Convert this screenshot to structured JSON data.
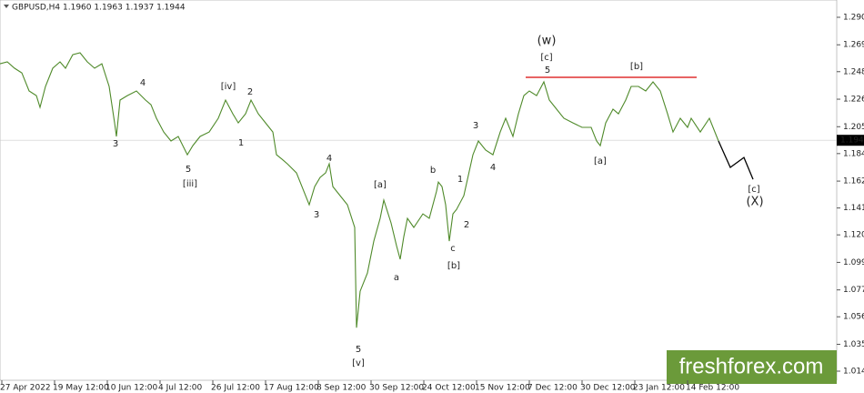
{
  "chart_data": {
    "type": "line",
    "title": "GBPUSD,H4  1.1960 1.1963 1.1937 1.1944",
    "series": [
      {
        "name": "GBPUSD",
        "color": "#4f8a2a",
        "x": [
          0,
          16,
          32,
          48,
          64,
          80,
          88,
          100,
          116,
          132,
          144,
          160,
          176,
          192,
          208,
          224,
          240,
          252,
          256,
          264,
          280,
          300,
          320,
          332,
          344,
          360,
          376,
          392,
          412,
          424,
          440,
          460,
          480,
          496,
          512,
          524,
          540,
          552,
          568,
          584,
          600,
          608,
          620,
          632,
          652,
          668,
          680,
          692,
          704,
          716,
          724,
          732,
          748,
          764,
          780,
          784,
          792,
          808,
          822,
          836,
          844,
          860,
          872,
          880,
          888,
          896,
          910,
          930,
          944,
          960,
          964,
          972,
          980,
          988,
          996,
          1004,
          1020,
          1040,
          1052,
          1068,
          1084,
          1100,
          1112,
          1128,
          1140,
          1152,
          1164,
          1180,
          1196,
          1208,
          1224,
          1240,
          1260,
          1280,
          1300,
          1312,
          1320,
          1332,
          1348,
          1360,
          1376,
          1388,
          1404,
          1420,
          1436,
          1452,
          1468,
          1480,
          1496,
          1512,
          1520,
          1540,
          1560,
          1580
        ],
        "values": [
          1.2542,
          1.2557,
          1.2507,
          1.2471,
          1.2329,
          1.2293,
          1.2201,
          1.2365,
          1.2507,
          1.2557,
          1.2507,
          1.2613,
          1.2628,
          1.2557,
          1.2507,
          1.2542,
          1.2365,
          1.208,
          1.1974,
          1.2258,
          1.2293,
          1.2329,
          1.2258,
          1.2222,
          1.2116,
          1.2009,
          1.1938,
          1.1974,
          1.1831,
          1.1902,
          1.1974,
          1.2009,
          1.2116,
          1.2258,
          1.2151,
          1.208,
          1.2151,
          1.2258,
          1.2151,
          1.208,
          1.2009,
          1.1831,
          1.1797,
          1.176,
          1.1689,
          1.1547,
          1.144,
          1.1582,
          1.1654,
          1.1689,
          1.176,
          1.1582,
          1.1511,
          1.144,
          1.1263,
          1.048,
          1.0765,
          1.0907,
          1.1156,
          1.1334,
          1.1476,
          1.1298,
          1.112,
          1.1014,
          1.1191,
          1.1334,
          1.1263,
          1.1369,
          1.1334,
          1.1547,
          1.1618,
          1.1582,
          1.144,
          1.1156,
          1.1369,
          1.1404,
          1.1511,
          1.1831,
          1.1938,
          1.1867,
          1.1831,
          1.2009,
          1.2116,
          1.1974,
          1.2151,
          1.2293,
          1.2329,
          1.2293,
          1.24,
          1.2258,
          1.2187,
          1.2116,
          1.208,
          1.2045,
          1.2045,
          1.1938,
          1.1902,
          1.208,
          1.2187,
          1.2151,
          1.2258,
          1.2365,
          1.2365,
          1.2329,
          1.24,
          1.2329,
          1.2151,
          1.2009,
          1.2116,
          1.2045,
          1.2116,
          1.2009,
          1.2116,
          1.1938
        ]
      },
      {
        "name": "projection",
        "color": "#000000",
        "x": [
          1580,
          1606,
          1636,
          1656
        ],
        "values": [
          1.1938,
          1.1732,
          1.181,
          1.1639
        ]
      }
    ],
    "resistance": {
      "value": 1.2436,
      "x": [
        1156,
        1532
      ],
      "color": "#e03030"
    },
    "last_price": {
      "value": 1.1944,
      "label": "1.1944"
    },
    "xlim": [
      0,
      1840
    ],
    "xticks": [
      {
        "value": 4,
        "label": "27 Apr 2022"
      },
      {
        "value": 120,
        "label": "19 May 12:00"
      },
      {
        "value": 236,
        "label": "10 Jun 12:00"
      },
      {
        "value": 352,
        "label": "4 Jul 12:00"
      },
      {
        "value": 468,
        "label": "26 Jul 12:00"
      },
      {
        "value": 584,
        "label": "17 Aug 12:00"
      },
      {
        "value": 700,
        "label": "8 Sep 12:00"
      },
      {
        "value": 816,
        "label": "30 Sep 12:00"
      },
      {
        "value": 932,
        "label": "24 Oct 12:00"
      },
      {
        "value": 1048,
        "label": "15 Nov 12:00"
      },
      {
        "value": 1164,
        "label": "7 Dec 12:00"
      },
      {
        "value": 1280,
        "label": "30 Dec 12:00"
      },
      {
        "value": 1396,
        "label": "23 Jan 12:00"
      },
      {
        "value": 1512,
        "label": "14 Feb 12:00"
      }
    ],
    "ylim": [
      1.0069,
      1.304
    ],
    "yticks": [
      1.2905,
      1.269,
      1.248,
      1.2265,
      1.205,
      1.184,
      1.1625,
      1.1415,
      1.1205,
      1.099,
      1.0775,
      1.0565,
      1.035,
      1.014
    ],
    "annotations": [
      {
        "text": "4",
        "color": "#e03030"
      },
      {
        "text": "3",
        "color": "#e03030"
      },
      {
        "text": "5",
        "color": "#e03030"
      },
      {
        "text": "[iii]",
        "color": "#3cc83c"
      },
      {
        "text": "[iv]",
        "color": "#3cc83c"
      },
      {
        "text": "2",
        "color": "#e03030"
      },
      {
        "text": "1",
        "color": "#e03030"
      },
      {
        "text": "4",
        "color": "#e03030"
      },
      {
        "text": "3",
        "color": "#e03030"
      },
      {
        "text": "[a]",
        "color": "#3cc83c"
      },
      {
        "text": "5",
        "color": "#e03030"
      },
      {
        "text": "[v]",
        "color": "#3cc83c"
      },
      {
        "text": "a",
        "color": "#e03030"
      },
      {
        "text": "b",
        "color": "#e03030"
      },
      {
        "text": "1",
        "color": "#e03030"
      },
      {
        "text": "2",
        "color": "#e03030"
      },
      {
        "text": "c",
        "color": "#e03030"
      },
      {
        "text": "[b]",
        "color": "#3cc83c"
      },
      {
        "text": "3",
        "color": "#e03030"
      },
      {
        "text": "4",
        "color": "#e03030"
      },
      {
        "text": "(w)",
        "color": "#1a1adc"
      },
      {
        "text": "[c]",
        "color": "#3cc83c"
      },
      {
        "text": "5",
        "color": "#e03030"
      },
      {
        "text": "[b]",
        "color": "#3cc83c"
      },
      {
        "text": "[a]",
        "color": "#3cc83c"
      },
      {
        "text": "[c]",
        "color": "#3cc83c"
      },
      {
        "text": "(X)",
        "color": "#1a1adc"
      }
    ],
    "watermark": "freshforex.com"
  }
}
